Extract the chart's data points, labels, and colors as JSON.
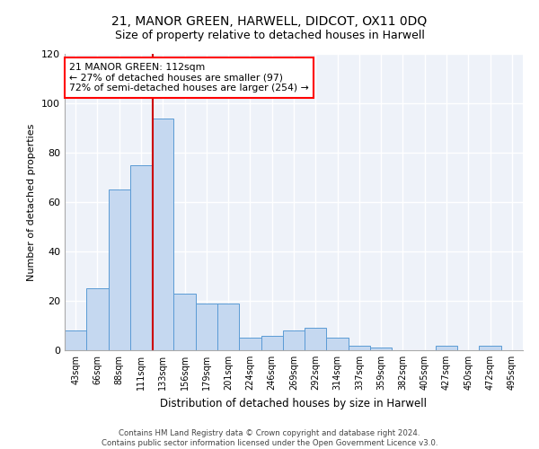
{
  "title": "21, MANOR GREEN, HARWELL, DIDCOT, OX11 0DQ",
  "subtitle": "Size of property relative to detached houses in Harwell",
  "xlabel": "Distribution of detached houses by size in Harwell",
  "ylabel": "Number of detached properties",
  "categories": [
    "43sqm",
    "66sqm",
    "88sqm",
    "111sqm",
    "133sqm",
    "156sqm",
    "179sqm",
    "201sqm",
    "224sqm",
    "246sqm",
    "269sqm",
    "292sqm",
    "314sqm",
    "337sqm",
    "359sqm",
    "382sqm",
    "405sqm",
    "427sqm",
    "450sqm",
    "472sqm",
    "495sqm"
  ],
  "values": [
    8,
    25,
    65,
    75,
    94,
    23,
    19,
    19,
    5,
    6,
    8,
    9,
    5,
    2,
    1,
    0,
    0,
    2,
    0,
    2,
    0
  ],
  "bar_color": "#c5d8f0",
  "bar_edge_color": "#5b9bd5",
  "red_line_index": 3.55,
  "annotation_text": "21 MANOR GREEN: 112sqm\n← 27% of detached houses are smaller (97)\n72% of semi-detached houses are larger (254) →",
  "annotation_box_color": "white",
  "annotation_box_edge_color": "red",
  "red_line_color": "#cc0000",
  "ylim": [
    0,
    120
  ],
  "yticks": [
    0,
    20,
    40,
    60,
    80,
    100,
    120
  ],
  "background_color": "#eef2f9",
  "grid_color": "white",
  "footer_line1": "Contains HM Land Registry data © Crown copyright and database right 2024.",
  "footer_line2": "Contains public sector information licensed under the Open Government Licence v3.0.",
  "title_fontsize": 10,
  "subtitle_fontsize": 9
}
